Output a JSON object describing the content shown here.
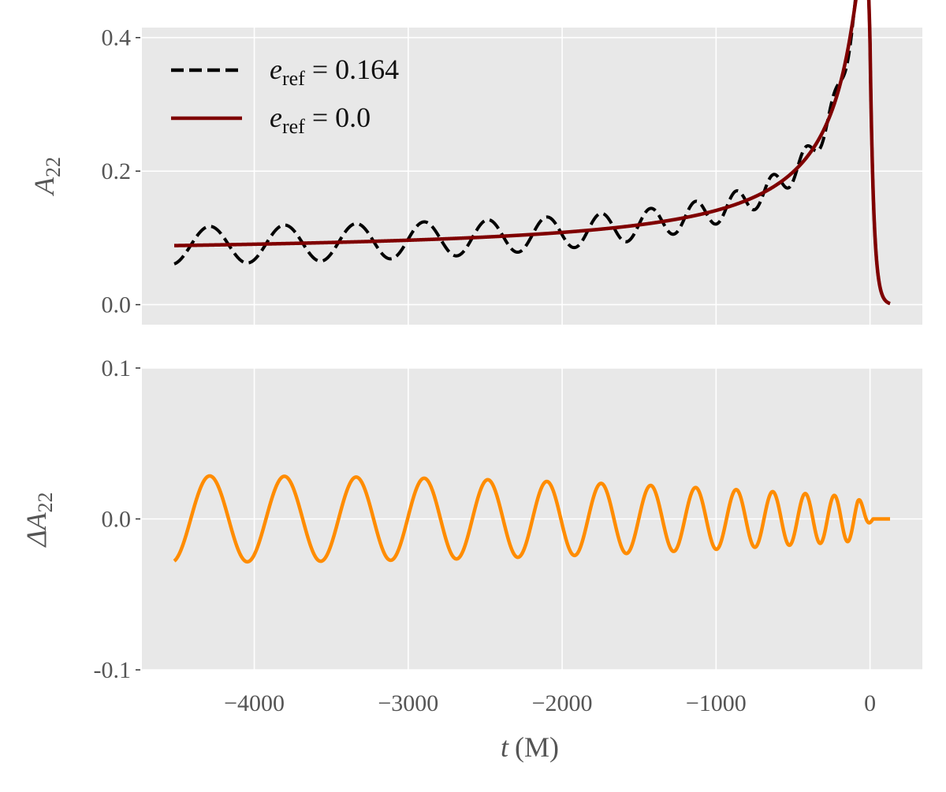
{
  "chart_data": [
    {
      "type": "line",
      "panel": "top",
      "ylabel_base": "A",
      "ylabel_sub": "22",
      "xlim": [
        -4730,
        340
      ],
      "ylim": [
        -0.03,
        0.415
      ],
      "yticks": [
        0.0,
        0.2,
        0.4
      ],
      "ytick_labels": [
        "0.0",
        "0.2",
        "0.4"
      ],
      "xticks": [
        -4000,
        -3000,
        -2000,
        -1000,
        0
      ],
      "grid": true,
      "legend": {
        "placement": "top-left"
      },
      "series": [
        {
          "name": "e_ref = 0.164",
          "legend_base": "e",
          "legend_sub": "ref",
          "legend_value": " = 0.164",
          "style": "dashed",
          "color": "#000000"
        },
        {
          "name": "e_ref = 0.0",
          "legend_base": "e",
          "legend_sub": "ref",
          "legend_value": " = 0.0",
          "style": "solid",
          "color": "#7f0000"
        }
      ],
      "model": {
        "t_start": -4520,
        "t_end": 130,
        "circular": {
          "base": 0.072,
          "k": 76.0,
          "offset": 100,
          "peak": 0.394,
          "decay_time": 24
        },
        "eccentric_osc": {
          "amplitude_start": 0.028,
          "amplitude_end": 0.015,
          "period_start": 495,
          "period_end": 150,
          "first_peak": -4290,
          "fade_start": -80,
          "fade_end": 0
        }
      }
    },
    {
      "type": "line",
      "panel": "bottom",
      "ylabel_prefix": "ΔA",
      "ylabel_sub": "22",
      "xlabel_var": "t",
      "xlabel_unit": "(M)",
      "xlim": [
        -4730,
        340
      ],
      "ylim": [
        -0.1,
        0.1
      ],
      "yticks": [
        -0.1,
        0.0,
        0.1
      ],
      "ytick_labels": [
        "-0.1",
        "0.0",
        "0.1"
      ],
      "xticks": [
        -4000,
        -3000,
        -2000,
        -1000,
        0
      ],
      "xtick_labels": [
        "−4000",
        "−3000",
        "−2000",
        "−1000",
        "0"
      ],
      "grid": true,
      "series": [
        {
          "style": "solid",
          "color": "#ff8c00"
        }
      ],
      "model": {
        "t_start": -4520,
        "t_end": 130,
        "osc": {
          "amplitude_start": 0.0285,
          "amplitude_end": 0.014,
          "period_start": 495,
          "period_end": 150,
          "first_peak": -4290,
          "fade_start": -80,
          "fade_end": 20
        }
      }
    }
  ],
  "colors": {
    "panel_background": "#e8e8e8",
    "grid": "#ffffff",
    "tick_text": "#555555"
  }
}
